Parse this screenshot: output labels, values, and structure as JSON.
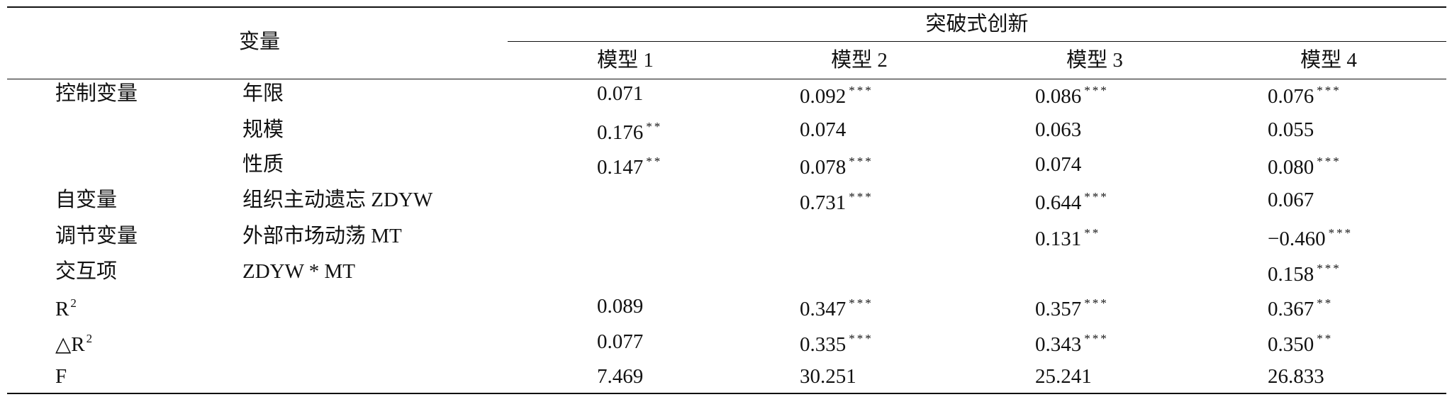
{
  "header": {
    "title": "变量",
    "group": "突破式创新",
    "models": [
      "模型 1",
      "模型 2",
      "模型 3",
      "模型 4"
    ]
  },
  "rows": [
    {
      "label": "控制变量",
      "variable": "年限",
      "cells": [
        {
          "value": "0.071"
        },
        {
          "value": "0.092",
          "sig": "***"
        },
        {
          "value": "0.086",
          "sig": "***"
        },
        {
          "value": "0.076",
          "sig": "***"
        }
      ]
    },
    {
      "label": null,
      "variable": "规模",
      "cells": [
        {
          "value": "0.176",
          "sig": "**"
        },
        {
          "value": "0.074"
        },
        {
          "value": "0.063"
        },
        {
          "value": "0.055"
        }
      ]
    },
    {
      "label": null,
      "variable": "性质",
      "cells": [
        {
          "value": "0.147",
          "sig": "**"
        },
        {
          "value": "0.078",
          "sig": "***"
        },
        {
          "value": "0.074"
        },
        {
          "value": "0.080",
          "sig": "***"
        }
      ]
    },
    {
      "label": "自变量",
      "variable": "组织主动遗忘 ZDYW",
      "cells": [
        null,
        {
          "value": "0.731",
          "sig": "***"
        },
        {
          "value": "0.644",
          "sig": "***"
        },
        {
          "value": "0.067"
        }
      ]
    },
    {
      "label": "调节变量",
      "variable": "外部市场动荡 MT",
      "cells": [
        null,
        null,
        {
          "value": "0.131",
          "sig": "**"
        },
        {
          "value": "−0.460",
          "sig": "***"
        }
      ]
    },
    {
      "label": "交互项",
      "variable": "ZDYW * MT",
      "cells": [
        null,
        null,
        null,
        {
          "value": "0.158",
          "sig": "***"
        }
      ]
    },
    {
      "label": {
        "text": "R",
        "sup": "2"
      },
      "variable": null,
      "cells": [
        {
          "value": "0.089"
        },
        {
          "value": "0.347",
          "sig": "***"
        },
        {
          "value": "0.357",
          "sig": "***"
        },
        {
          "value": "0.367",
          "sig": "**"
        }
      ]
    },
    {
      "label": {
        "text": "△R",
        "sup": "2"
      },
      "variable": null,
      "cells": [
        {
          "value": "0.077"
        },
        {
          "value": "0.335",
          "sig": "***"
        },
        {
          "value": "0.343",
          "sig": "***"
        },
        {
          "value": "0.350",
          "sig": "**"
        }
      ]
    },
    {
      "label": "F",
      "variable": null,
      "cells": [
        {
          "value": "7.469"
        },
        {
          "value": "30.251"
        },
        {
          "value": "25.241"
        },
        {
          "value": "26.833"
        }
      ]
    }
  ]
}
